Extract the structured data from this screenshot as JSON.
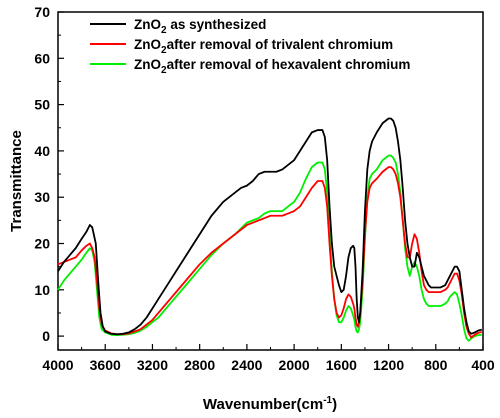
{
  "chart_data": {
    "type": "line",
    "xlabel_main": "Wavenumber(cm",
    "xlabel_sup": "-1",
    "xlabel_close": ")",
    "ylabel": "Transmittance",
    "xlim": [
      4000,
      400
    ],
    "ylim": [
      -3,
      70
    ],
    "x_reversed": true,
    "x_ticks": [
      4000,
      3600,
      3200,
      2800,
      2400,
      2000,
      1600,
      1200,
      800,
      400
    ],
    "y_ticks": [
      0,
      10,
      20,
      30,
      40,
      50,
      60,
      70
    ],
    "legend_position": "top-left",
    "series": [
      {
        "legend_pre": "ZnO",
        "legend_sub": "2",
        "legend_post": " as synthesized",
        "color": "#000000",
        "points": [
          [
            4000,
            14
          ],
          [
            3950,
            16
          ],
          [
            3900,
            17.5
          ],
          [
            3850,
            19
          ],
          [
            3800,
            21
          ],
          [
            3760,
            22.5
          ],
          [
            3730,
            24
          ],
          [
            3710,
            23.5
          ],
          [
            3680,
            20
          ],
          [
            3660,
            12
          ],
          [
            3640,
            5
          ],
          [
            3620,
            2
          ],
          [
            3600,
            1
          ],
          [
            3550,
            0.5
          ],
          [
            3500,
            0.4
          ],
          [
            3450,
            0.5
          ],
          [
            3400,
            0.8
          ],
          [
            3350,
            1.5
          ],
          [
            3300,
            2.5
          ],
          [
            3250,
            4
          ],
          [
            3200,
            6
          ],
          [
            3150,
            8
          ],
          [
            3100,
            10
          ],
          [
            3050,
            12
          ],
          [
            3000,
            14
          ],
          [
            2900,
            18
          ],
          [
            2800,
            22
          ],
          [
            2700,
            26
          ],
          [
            2600,
            29
          ],
          [
            2500,
            31
          ],
          [
            2450,
            32
          ],
          [
            2400,
            32.5
          ],
          [
            2350,
            33.5
          ],
          [
            2300,
            35
          ],
          [
            2250,
            35.5
          ],
          [
            2200,
            35.5
          ],
          [
            2150,
            35.5
          ],
          [
            2100,
            36
          ],
          [
            2050,
            37
          ],
          [
            2000,
            38
          ],
          [
            1950,
            40
          ],
          [
            1900,
            42
          ],
          [
            1850,
            44
          ],
          [
            1800,
            44.5
          ],
          [
            1760,
            44.5
          ],
          [
            1740,
            43
          ],
          [
            1720,
            38
          ],
          [
            1700,
            28
          ],
          [
            1680,
            20
          ],
          [
            1660,
            15
          ],
          [
            1640,
            13
          ],
          [
            1620,
            11
          ],
          [
            1600,
            9.5
          ],
          [
            1580,
            10
          ],
          [
            1560,
            13
          ],
          [
            1540,
            17
          ],
          [
            1520,
            19
          ],
          [
            1500,
            19.5
          ],
          [
            1490,
            19
          ],
          [
            1480,
            15
          ],
          [
            1470,
            8
          ],
          [
            1460,
            4
          ],
          [
            1450,
            3
          ],
          [
            1440,
            5
          ],
          [
            1420,
            14
          ],
          [
            1400,
            27
          ],
          [
            1380,
            36
          ],
          [
            1360,
            40
          ],
          [
            1340,
            42
          ],
          [
            1300,
            44
          ],
          [
            1250,
            46
          ],
          [
            1200,
            47
          ],
          [
            1180,
            47
          ],
          [
            1160,
            46.5
          ],
          [
            1140,
            45
          ],
          [
            1120,
            42
          ],
          [
            1100,
            38
          ],
          [
            1080,
            32
          ],
          [
            1060,
            25
          ],
          [
            1040,
            20
          ],
          [
            1020,
            17
          ],
          [
            1000,
            15
          ],
          [
            980,
            15
          ],
          [
            960,
            18
          ],
          [
            940,
            17
          ],
          [
            920,
            15
          ],
          [
            900,
            13
          ],
          [
            880,
            12
          ],
          [
            860,
            11
          ],
          [
            840,
            10.5
          ],
          [
            800,
            10.5
          ],
          [
            760,
            10.5
          ],
          [
            720,
            11
          ],
          [
            700,
            12
          ],
          [
            680,
            13
          ],
          [
            660,
            14
          ],
          [
            640,
            15
          ],
          [
            620,
            15
          ],
          [
            600,
            14
          ],
          [
            580,
            10
          ],
          [
            560,
            6
          ],
          [
            540,
            3
          ],
          [
            520,
            1
          ],
          [
            500,
            0.5
          ],
          [
            470,
            0.8
          ],
          [
            440,
            1.2
          ],
          [
            410,
            1.4
          ]
        ]
      },
      {
        "legend_pre": "ZnO",
        "legend_sub": "2",
        "legend_post": "after removal of trivalent chromium",
        "color": "#ff0000",
        "points": [
          [
            4000,
            15.5
          ],
          [
            3950,
            16
          ],
          [
            3900,
            16.5
          ],
          [
            3850,
            17
          ],
          [
            3800,
            18.5
          ],
          [
            3760,
            19.5
          ],
          [
            3730,
            20
          ],
          [
            3710,
            19
          ],
          [
            3690,
            17
          ],
          [
            3670,
            12
          ],
          [
            3650,
            6
          ],
          [
            3630,
            2.5
          ],
          [
            3600,
            1.2
          ],
          [
            3550,
            0.6
          ],
          [
            3500,
            0.4
          ],
          [
            3450,
            0.4
          ],
          [
            3400,
            0.6
          ],
          [
            3350,
            1
          ],
          [
            3300,
            1.5
          ],
          [
            3250,
            2.5
          ],
          [
            3200,
            3.5
          ],
          [
            3150,
            5
          ],
          [
            3100,
            6.5
          ],
          [
            3050,
            8
          ],
          [
            3000,
            9.5
          ],
          [
            2900,
            12.5
          ],
          [
            2800,
            15.5
          ],
          [
            2700,
            18
          ],
          [
            2600,
            20
          ],
          [
            2500,
            22
          ],
          [
            2400,
            24
          ],
          [
            2350,
            24.5
          ],
          [
            2300,
            25
          ],
          [
            2250,
            25.5
          ],
          [
            2200,
            26
          ],
          [
            2150,
            26
          ],
          [
            2100,
            26
          ],
          [
            2050,
            26.5
          ],
          [
            2000,
            27
          ],
          [
            1950,
            28
          ],
          [
            1900,
            30
          ],
          [
            1850,
            32
          ],
          [
            1800,
            33.5
          ],
          [
            1760,
            33.5
          ],
          [
            1740,
            32
          ],
          [
            1720,
            28
          ],
          [
            1700,
            20
          ],
          [
            1680,
            13
          ],
          [
            1660,
            8
          ],
          [
            1640,
            5
          ],
          [
            1620,
            4
          ],
          [
            1600,
            4.5
          ],
          [
            1580,
            6
          ],
          [
            1560,
            8
          ],
          [
            1540,
            9
          ],
          [
            1520,
            8.5
          ],
          [
            1500,
            7
          ],
          [
            1490,
            6
          ],
          [
            1480,
            4
          ],
          [
            1470,
            2.5
          ],
          [
            1460,
            2
          ],
          [
            1450,
            3
          ],
          [
            1440,
            5
          ],
          [
            1420,
            12
          ],
          [
            1400,
            22
          ],
          [
            1380,
            29
          ],
          [
            1360,
            32
          ],
          [
            1340,
            33
          ],
          [
            1300,
            34
          ],
          [
            1250,
            35.5
          ],
          [
            1200,
            36.5
          ],
          [
            1180,
            36.5
          ],
          [
            1160,
            36
          ],
          [
            1140,
            35
          ],
          [
            1120,
            33
          ],
          [
            1100,
            30
          ],
          [
            1080,
            25
          ],
          [
            1060,
            20
          ],
          [
            1040,
            17
          ],
          [
            1020,
            17
          ],
          [
            1000,
            20
          ],
          [
            980,
            22
          ],
          [
            960,
            21
          ],
          [
            940,
            18
          ],
          [
            920,
            14
          ],
          [
            900,
            11
          ],
          [
            880,
            10
          ],
          [
            860,
            9.5
          ],
          [
            840,
            9.5
          ],
          [
            800,
            9.5
          ],
          [
            760,
            9.5
          ],
          [
            720,
            10
          ],
          [
            700,
            10.5
          ],
          [
            680,
            11.5
          ],
          [
            660,
            12.5
          ],
          [
            640,
            13.5
          ],
          [
            620,
            13.5
          ],
          [
            600,
            12
          ],
          [
            580,
            9
          ],
          [
            560,
            5
          ],
          [
            540,
            2
          ],
          [
            520,
            0.5
          ],
          [
            500,
            -0.3
          ],
          [
            470,
            0.3
          ],
          [
            440,
            0.7
          ],
          [
            410,
            0.9
          ]
        ]
      },
      {
        "legend_pre": "ZnO",
        "legend_sub": "2",
        "legend_post": "after removal of hexavalent chromium",
        "color": "#00ee00",
        "points": [
          [
            4000,
            10
          ],
          [
            3950,
            12
          ],
          [
            3900,
            13.5
          ],
          [
            3850,
            15
          ],
          [
            3800,
            16.5
          ],
          [
            3760,
            18
          ],
          [
            3730,
            19
          ],
          [
            3710,
            18.5
          ],
          [
            3690,
            16
          ],
          [
            3670,
            10
          ],
          [
            3650,
            4
          ],
          [
            3630,
            1.5
          ],
          [
            3600,
            0.8
          ],
          [
            3550,
            0.3
          ],
          [
            3500,
            0.2
          ],
          [
            3450,
            0.3
          ],
          [
            3400,
            0.4
          ],
          [
            3350,
            0.7
          ],
          [
            3300,
            1.2
          ],
          [
            3250,
            2
          ],
          [
            3200,
            3
          ],
          [
            3150,
            4
          ],
          [
            3100,
            5.5
          ],
          [
            3050,
            7
          ],
          [
            3000,
            8.5
          ],
          [
            2900,
            11.5
          ],
          [
            2800,
            14.5
          ],
          [
            2700,
            17.5
          ],
          [
            2600,
            20
          ],
          [
            2500,
            22
          ],
          [
            2400,
            24.5
          ],
          [
            2350,
            25
          ],
          [
            2300,
            25.5
          ],
          [
            2250,
            26.5
          ],
          [
            2200,
            27
          ],
          [
            2150,
            27
          ],
          [
            2100,
            27
          ],
          [
            2050,
            28
          ],
          [
            2000,
            29
          ],
          [
            1950,
            31
          ],
          [
            1900,
            34
          ],
          [
            1850,
            36.5
          ],
          [
            1800,
            37.5
          ],
          [
            1760,
            37.5
          ],
          [
            1740,
            36
          ],
          [
            1720,
            31
          ],
          [
            1700,
            22
          ],
          [
            1680,
            14
          ],
          [
            1660,
            8
          ],
          [
            1640,
            4.5
          ],
          [
            1620,
            3
          ],
          [
            1600,
            3
          ],
          [
            1580,
            4
          ],
          [
            1560,
            5.5
          ],
          [
            1540,
            6.5
          ],
          [
            1520,
            6
          ],
          [
            1500,
            4.5
          ],
          [
            1490,
            3.5
          ],
          [
            1480,
            2
          ],
          [
            1470,
            1
          ],
          [
            1460,
            0.8
          ],
          [
            1450,
            1.5
          ],
          [
            1440,
            3
          ],
          [
            1420,
            10
          ],
          [
            1400,
            21
          ],
          [
            1380,
            30
          ],
          [
            1360,
            34
          ],
          [
            1340,
            35
          ],
          [
            1300,
            36
          ],
          [
            1250,
            38
          ],
          [
            1200,
            39
          ],
          [
            1180,
            39
          ],
          [
            1160,
            38.5
          ],
          [
            1140,
            37.5
          ],
          [
            1120,
            35
          ],
          [
            1100,
            31
          ],
          [
            1080,
            25
          ],
          [
            1060,
            19
          ],
          [
            1040,
            15
          ],
          [
            1020,
            13
          ],
          [
            1000,
            15
          ],
          [
            980,
            16
          ],
          [
            960,
            15
          ],
          [
            940,
            13
          ],
          [
            920,
            10
          ],
          [
            900,
            8
          ],
          [
            880,
            7
          ],
          [
            860,
            6.5
          ],
          [
            840,
            6.5
          ],
          [
            800,
            6.5
          ],
          [
            760,
            6.5
          ],
          [
            720,
            7
          ],
          [
            700,
            7.5
          ],
          [
            680,
            8.5
          ],
          [
            660,
            9
          ],
          [
            640,
            9.5
          ],
          [
            620,
            9
          ],
          [
            600,
            7
          ],
          [
            580,
            4.5
          ],
          [
            560,
            1.5
          ],
          [
            540,
            -0.5
          ],
          [
            520,
            -1
          ],
          [
            500,
            -0.5
          ],
          [
            470,
            0
          ],
          [
            440,
            0.2
          ],
          [
            410,
            0.3
          ]
        ]
      }
    ]
  }
}
